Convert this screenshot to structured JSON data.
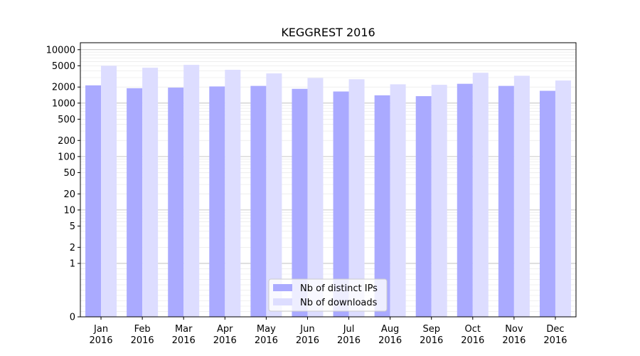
{
  "chart_data": {
    "type": "bar",
    "title": "KEGGREST 2016",
    "xlabel": "",
    "ylabel": "",
    "scale": "symlog",
    "categories": [
      [
        "Jan",
        "2016"
      ],
      [
        "Feb",
        "2016"
      ],
      [
        "Mar",
        "2016"
      ],
      [
        "Apr",
        "2016"
      ],
      [
        "May",
        "2016"
      ],
      [
        "Jun",
        "2016"
      ],
      [
        "Jul",
        "2016"
      ],
      [
        "Aug",
        "2016"
      ],
      [
        "Sep",
        "2016"
      ],
      [
        "Oct",
        "2016"
      ],
      [
        "Nov",
        "2016"
      ],
      [
        "Dec",
        "2016"
      ]
    ],
    "yticks": [
      0,
      1,
      2,
      5,
      10,
      20,
      50,
      100,
      200,
      500,
      1000,
      2000,
      5000,
      10000
    ],
    "ylim": [
      0,
      13500
    ],
    "grid": true,
    "legend_position": "lower-center",
    "series": [
      {
        "name": "Nb of distinct IPs",
        "color": "#aaaaff",
        "values": [
          2150,
          1900,
          1950,
          2050,
          2100,
          1850,
          1650,
          1400,
          1350,
          2300,
          2100,
          1700
        ]
      },
      {
        "name": "Nb of downloads",
        "color": "#ddddff",
        "values": [
          5000,
          4600,
          5200,
          4200,
          3600,
          2950,
          2800,
          2250,
          2200,
          3700,
          3250,
          2650
        ]
      }
    ]
  }
}
